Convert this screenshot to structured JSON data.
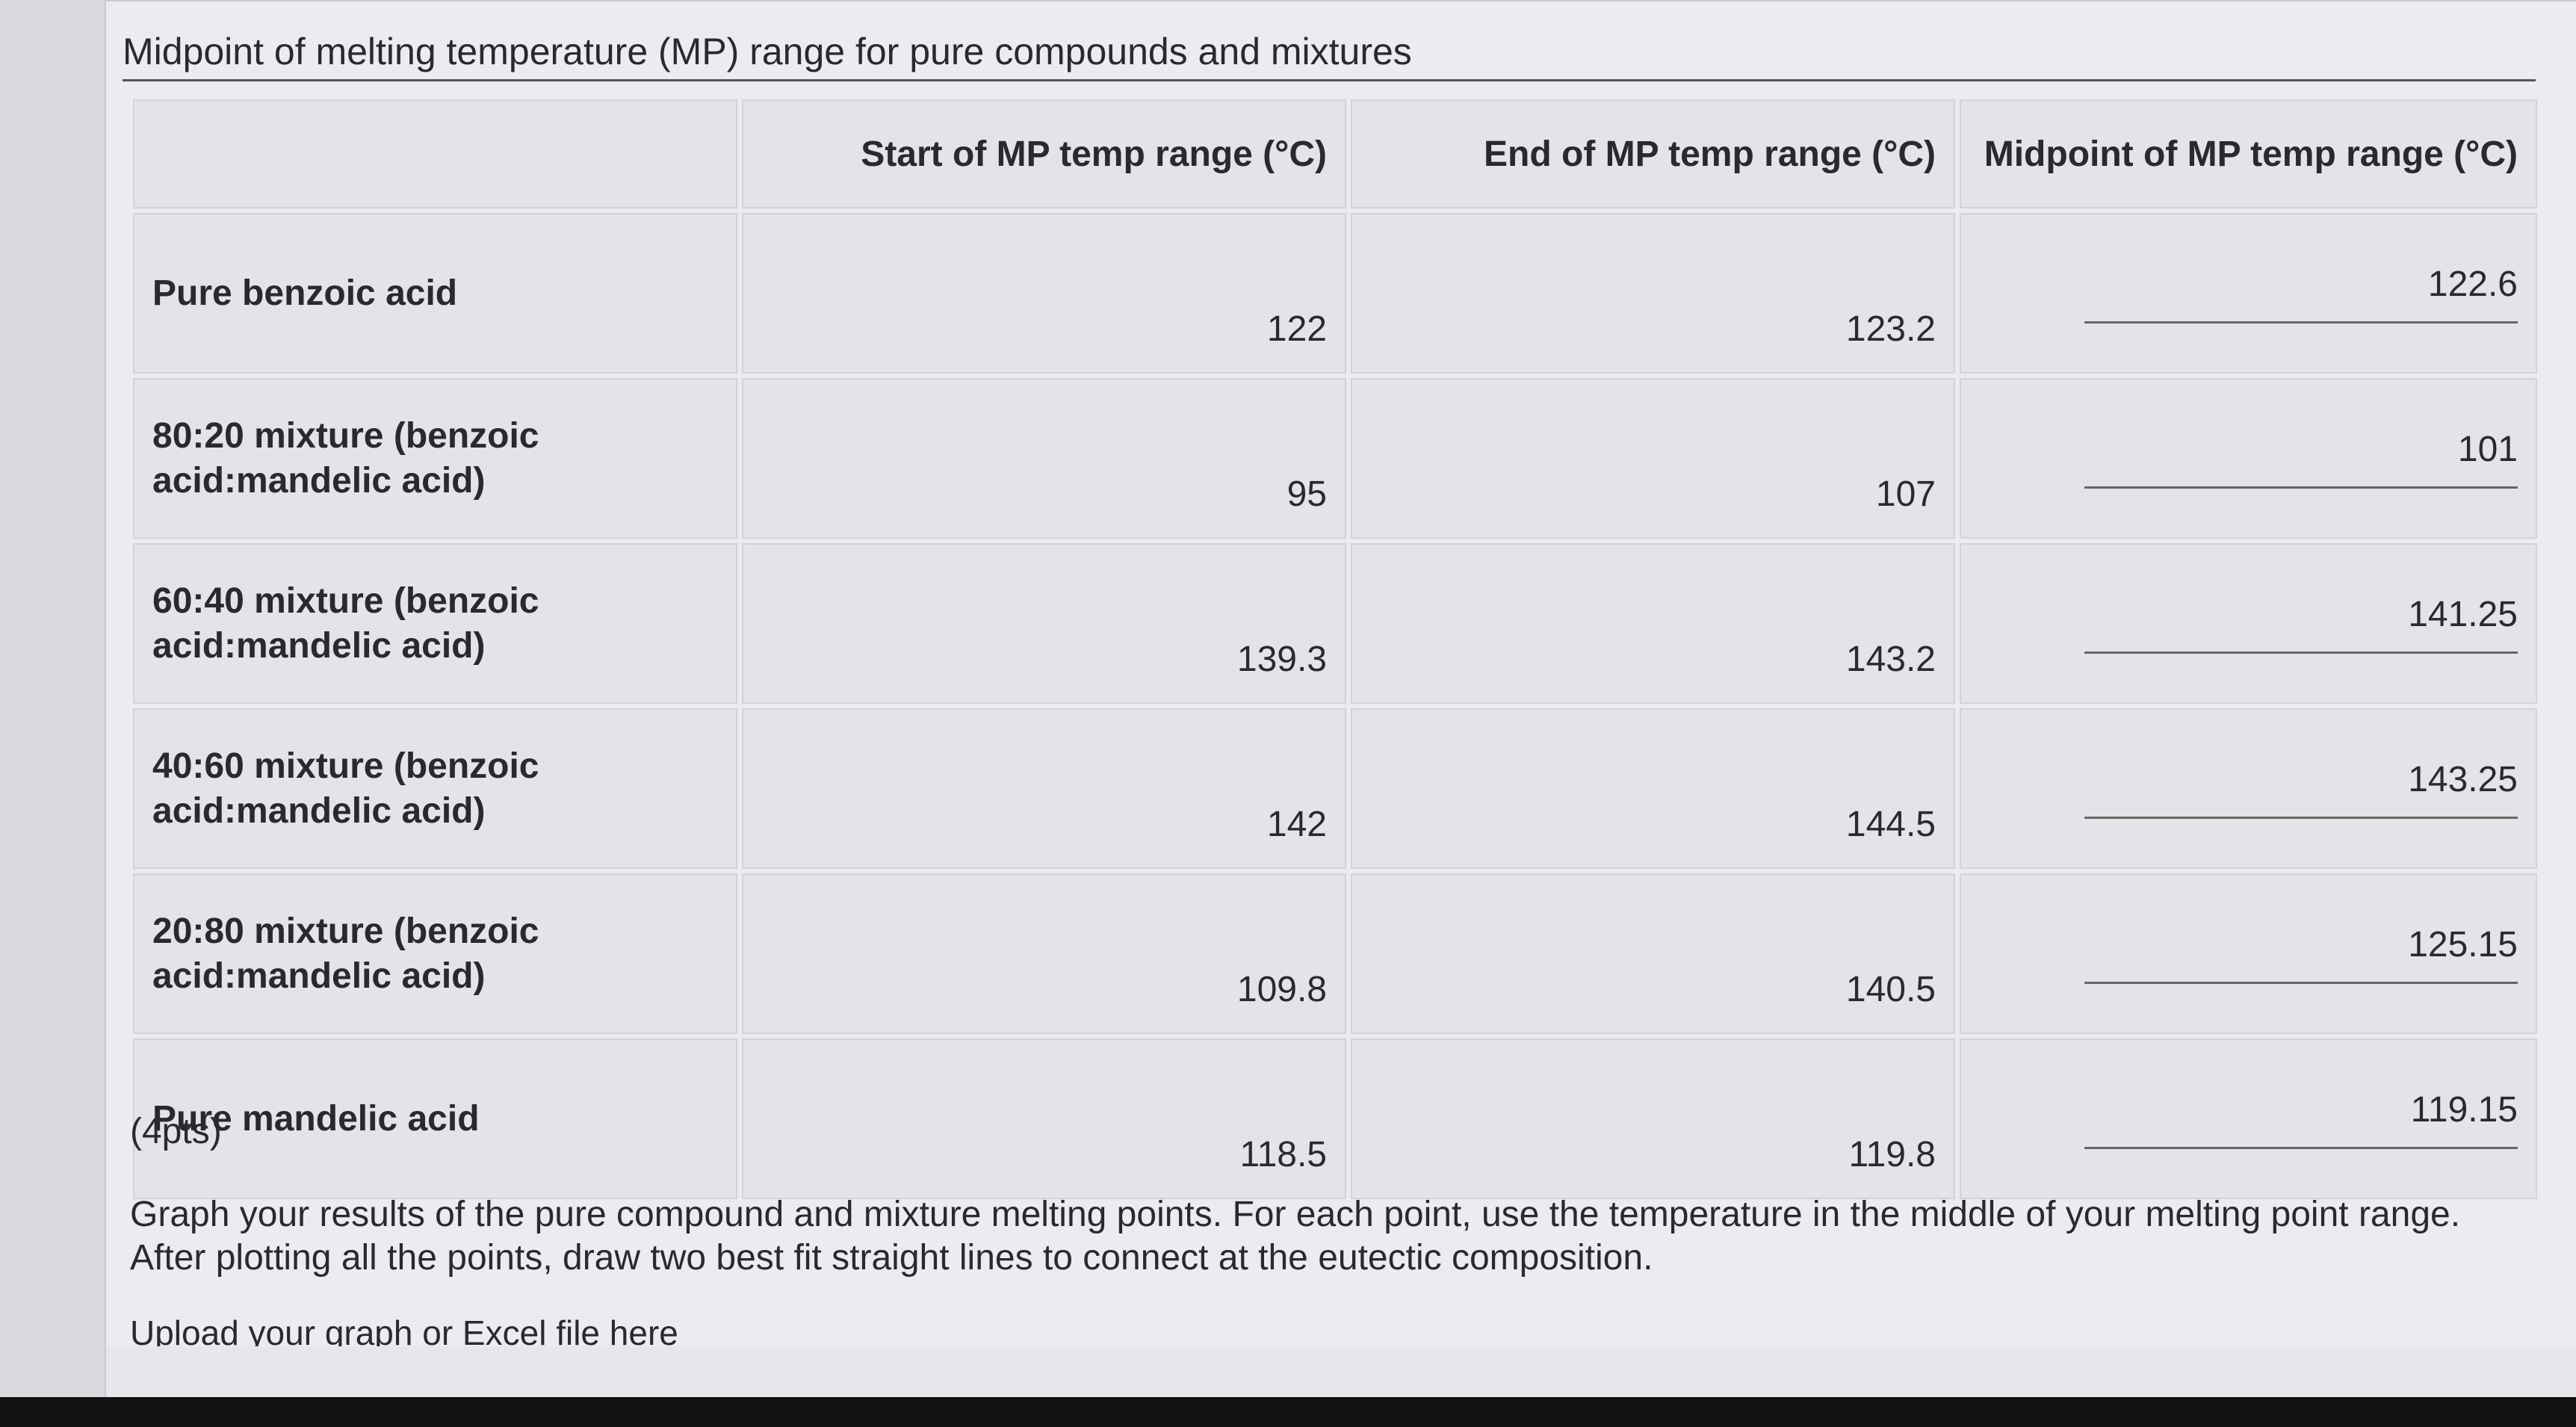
{
  "title": "Midpoint of melting temperature (MP) range for pure compounds and mixtures",
  "table": {
    "header": [
      "Start of MP temp range (°C)",
      "End of MP temp range (°C)",
      "Midpoint of MP temp range (°C)"
    ],
    "rows": [
      [
        "Pure benzoic acid",
        "122",
        "123.2",
        "122.6"
      ],
      [
        "80:20 mixture (benzoic acid:mandelic acid)",
        "95",
        "107",
        "101"
      ],
      [
        "60:40 mixture (benzoic acid:mandelic acid)",
        "139.3",
        "143.2",
        "141.25"
      ],
      [
        "40:60 mixture (benzoic acid:mandelic acid)",
        "142",
        "144.5",
        "143.25"
      ],
      [
        "20:80 mixture (benzoic acid:mandelic acid)",
        "109.8",
        "140.5",
        "125.15"
      ],
      [
        "Pure mandelic acid",
        "118.5",
        "119.8",
        "119.15"
      ]
    ]
  },
  "points": "(4pts)",
  "instructions": "Graph your results of the pure compound and mixture melting points. For each point, use the temperature in the middle of your melting point range. After plotting all the points, draw two best fit straight lines to connect at the eutectic composition.",
  "upload": "Upload your graph or Excel file here"
}
